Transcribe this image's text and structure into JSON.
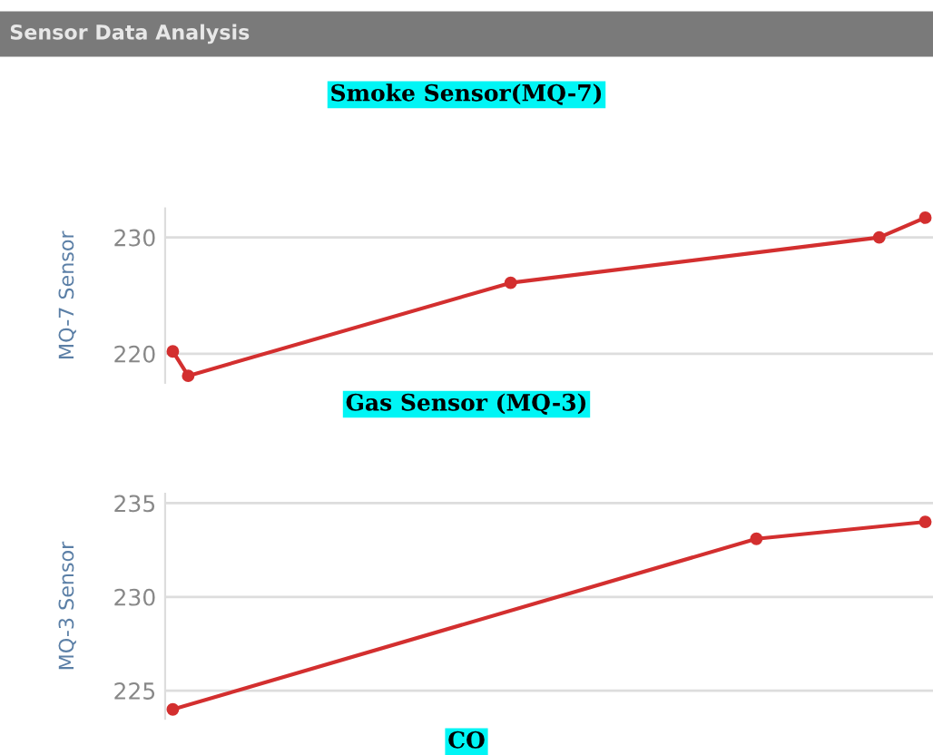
{
  "chart_data": [
    {
      "type": "line",
      "title": "Smoke Sensor(MQ-7)",
      "ylabel": "MQ-7 Sensor",
      "annotations": [
        "Sensor Data Analysis"
      ],
      "categories": [
        null,
        null,
        null,
        null,
        null,
        null,
        null,
        null,
        null,
        null,
        null,
        null,
        null,
        null,
        null,
        null,
        null,
        null,
        null,
        null,
        null,
        null,
        null,
        null,
        null,
        null,
        null,
        null,
        null,
        null,
        null,
        null,
        null,
        null,
        null,
        null,
        null,
        null,
        null,
        null,
        null,
        null,
        null,
        null,
        null,
        null,
        null,
        null,
        null,
        null
      ],
      "series": [
        {
          "color": "#d32f2f",
          "values": [
            220.2,
            218.1,
            null,
            null,
            null,
            null,
            null,
            null,
            null,
            null,
            null,
            null,
            null,
            null,
            null,
            null,
            null,
            null,
            null,
            null,
            null,
            null,
            226.1,
            null,
            null,
            null,
            null,
            null,
            null,
            null,
            null,
            null,
            null,
            null,
            null,
            null,
            null,
            null,
            null,
            null,
            null,
            null,
            null,
            null,
            null,
            null,
            230,
            null,
            null,
            231.7
          ]
        }
      ],
      "ylim": [
        217.5,
        232.5
      ],
      "yticks": [
        220,
        230
      ],
      "grid": "y",
      "marker": "circle",
      "line_style": "solid",
      "tick_labels": "y"
    },
    {
      "type": "line",
      "title": "Gas Sensor (MQ-3)",
      "ylabel": "MQ-3 Sensor",
      "annotations": [
        "CO"
      ],
      "categories": [
        null,
        null,
        null,
        null,
        null,
        null,
        null,
        null,
        null,
        null,
        null,
        null,
        null,
        null,
        null,
        null,
        null,
        null,
        null,
        null,
        null,
        null,
        null,
        null,
        null,
        null,
        null,
        null,
        null,
        null,
        null,
        null,
        null,
        null,
        null,
        null,
        null,
        null,
        null,
        null,
        null,
        null,
        null,
        null,
        null,
        null,
        null,
        null,
        null,
        null
      ],
      "series": [
        {
          "color": "#d32f2f",
          "values": [
            224.0,
            null,
            null,
            null,
            null,
            null,
            null,
            null,
            null,
            null,
            null,
            null,
            null,
            null,
            null,
            null,
            null,
            null,
            null,
            null,
            null,
            null,
            null,
            null,
            null,
            null,
            null,
            null,
            null,
            null,
            null,
            null,
            null,
            null,
            null,
            null,
            null,
            null,
            233.1,
            null,
            null,
            null,
            null,
            null,
            null,
            null,
            null,
            null,
            null,
            234.0
          ]
        }
      ],
      "ylim": [
        223.5,
        235.5
      ],
      "yticks": [
        225,
        230,
        235
      ],
      "grid": "y",
      "marker": "circle",
      "line_style": "solid",
      "tick_labels": "y"
    }
  ]
}
